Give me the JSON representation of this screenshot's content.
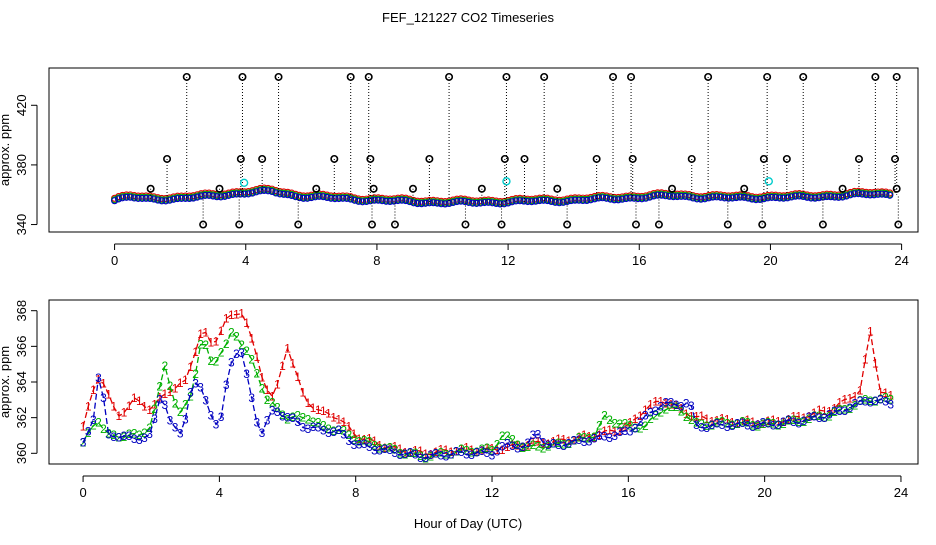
{
  "title": "FEF_121227  CO2 Timeseries",
  "xlabel": "Hour of Day (UTC)",
  "colors": {
    "series1": "#e00000",
    "series2": "#00b000",
    "series3": "#0000c0",
    "cyan": "#00cccc",
    "outlier": "#000000"
  },
  "chart_data": [
    {
      "type": "scatter",
      "ylabel": "approx. ppm",
      "xlim": [
        -2,
        24.5
      ],
      "ylim": [
        335,
        445
      ],
      "xticks": [
        0,
        4,
        8,
        12,
        16,
        20,
        24
      ],
      "yticks": [
        340,
        380,
        420
      ],
      "grid": false,
      "baseline": [
        [
          0,
          356
        ],
        [
          0.5,
          358
        ],
        [
          1,
          357
        ],
        [
          2,
          357
        ],
        [
          3,
          359
        ],
        [
          4,
          361
        ],
        [
          4.8,
          362
        ],
        [
          5.5,
          359
        ],
        [
          7,
          357
        ],
        [
          8,
          356
        ],
        [
          9,
          355
        ],
        [
          10,
          354.5
        ],
        [
          11,
          354.5
        ],
        [
          12,
          355
        ],
        [
          13,
          355.5
        ],
        [
          14,
          356
        ],
        [
          15,
          357
        ],
        [
          16,
          358
        ],
        [
          17,
          359
        ],
        [
          18,
          358
        ],
        [
          19,
          357.5
        ],
        [
          20,
          358
        ],
        [
          21,
          358
        ],
        [
          22,
          359
        ],
        [
          23,
          360
        ],
        [
          23.7,
          360
        ]
      ],
      "outliers_high": [
        2.2,
        3.9,
        5.0,
        7.2,
        7.75,
        10.2,
        11.95,
        13.1,
        15.2,
        15.75,
        18.1,
        19.9,
        21.0,
        23.2,
        23.85
      ],
      "high_value": 439,
      "outliers_mid": [
        1.6,
        3.85,
        4.5,
        6.7,
        7.8,
        9.6,
        11.9,
        12.5,
        14.7,
        15.8,
        17.6,
        19.8,
        20.5,
        22.7,
        23.8
      ],
      "mid_value": 384,
      "outliers_low": [
        2.7,
        3.8,
        5.6,
        7.85,
        8.55,
        10.7,
        11.8,
        13.8,
        15.9,
        16.6,
        18.7,
        19.75,
        21.6,
        23.9
      ],
      "low_value": 340,
      "outliers_small": [
        1.1,
        3.2,
        6.15,
        7.9,
        9.1,
        11.2,
        13.5,
        17.0,
        19.2,
        22.2,
        23.85
      ],
      "small_value": 364,
      "cyan_points": [
        [
          3.95,
          368
        ],
        [
          11.95,
          369
        ],
        [
          19.95,
          369
        ]
      ]
    },
    {
      "type": "line",
      "ylabel": "approx. ppm",
      "xlim": [
        -1,
        24.5
      ],
      "ylim": [
        359.4,
        368.6
      ],
      "xticks": [
        0,
        4,
        8,
        12,
        16,
        20,
        24
      ],
      "yticks": [
        360,
        362,
        364,
        366,
        368
      ],
      "grid": false,
      "series": [
        {
          "name": "1",
          "points": [
            [
              0,
              361.5
            ],
            [
              0.3,
              363.5
            ],
            [
              0.5,
              364.5
            ],
            [
              0.8,
              363
            ],
            [
              1,
              362
            ],
            [
              1.5,
              363
            ],
            [
              2,
              362.5
            ],
            [
              2.5,
              363.5
            ],
            [
              3,
              364
            ],
            [
              3.5,
              367
            ],
            [
              3.8,
              366
            ],
            [
              4.2,
              367.5
            ],
            [
              4.7,
              368
            ],
            [
              5,
              366
            ],
            [
              5.3,
              364
            ],
            [
              5.6,
              363
            ],
            [
              6,
              366
            ],
            [
              6.5,
              363
            ],
            [
              7,
              362.3
            ],
            [
              7.5,
              362
            ],
            [
              8,
              361
            ],
            [
              9,
              360.3
            ],
            [
              10,
              360
            ],
            [
              11,
              360.2
            ],
            [
              12,
              360.2
            ],
            [
              13,
              360.5
            ],
            [
              14,
              360.7
            ],
            [
              15,
              361
            ],
            [
              16,
              361.5
            ],
            [
              16.5,
              362.5
            ],
            [
              17,
              363
            ],
            [
              18,
              362
            ],
            [
              19,
              361.8
            ],
            [
              20,
              361.7
            ],
            [
              21,
              362
            ],
            [
              22,
              362.5
            ],
            [
              22.8,
              363.5
            ],
            [
              23.1,
              366.8
            ],
            [
              23.4,
              363.5
            ],
            [
              23.8,
              363
            ]
          ]
        },
        {
          "name": "2",
          "points": [
            [
              0,
              360.5
            ],
            [
              0.4,
              362
            ],
            [
              0.7,
              361
            ],
            [
              1,
              361
            ],
            [
              1.6,
              361
            ],
            [
              2,
              361.5
            ],
            [
              2.4,
              365
            ],
            [
              2.8,
              362
            ],
            [
              3.2,
              363.5
            ],
            [
              3.5,
              366.5
            ],
            [
              3.8,
              365
            ],
            [
              4.2,
              366
            ],
            [
              4.4,
              367
            ],
            [
              4.6,
              366.3
            ],
            [
              5,
              365
            ],
            [
              5.4,
              363
            ],
            [
              6,
              362
            ],
            [
              6.6,
              362
            ],
            [
              7,
              361.5
            ],
            [
              7.5,
              361.3
            ],
            [
              8,
              360.8
            ],
            [
              9,
              360.2
            ],
            [
              10,
              359.8
            ],
            [
              11,
              360.1
            ],
            [
              12,
              360.2
            ],
            [
              12.3,
              361
            ],
            [
              13,
              360.3
            ],
            [
              14,
              360.5
            ],
            [
              15,
              361
            ],
            [
              15.3,
              362
            ],
            [
              16,
              361.5
            ],
            [
              16.5,
              361.5
            ],
            [
              17,
              362.5
            ],
            [
              17.5,
              362.5
            ],
            [
              18,
              361.6
            ],
            [
              19,
              361.7
            ],
            [
              20,
              361.6
            ],
            [
              21,
              361.8
            ],
            [
              22,
              362.2
            ],
            [
              23,
              363
            ],
            [
              23.8,
              363
            ]
          ]
        },
        {
          "name": "3",
          "points": [
            [
              0,
              360.5
            ],
            [
              0.3,
              362
            ],
            [
              0.5,
              365
            ],
            [
              0.7,
              361
            ],
            [
              1,
              361
            ],
            [
              1.5,
              360.8
            ],
            [
              2,
              361
            ],
            [
              2.3,
              363.5
            ],
            [
              2.6,
              361.5
            ],
            [
              2.9,
              361
            ],
            [
              3.2,
              364
            ],
            [
              3.5,
              363.5
            ],
            [
              3.8,
              362
            ],
            [
              4,
              361.3
            ],
            [
              4.3,
              365
            ],
            [
              4.6,
              366
            ],
            [
              4.9,
              363.5
            ],
            [
              5.2,
              361
            ],
            [
              5.6,
              362.5
            ],
            [
              6,
              362
            ],
            [
              6.5,
              361.5
            ],
            [
              7,
              361.3
            ],
            [
              7.5,
              361.2
            ],
            [
              8,
              360.5
            ],
            [
              9,
              360.1
            ],
            [
              10,
              359.8
            ],
            [
              11,
              360
            ],
            [
              12,
              360
            ],
            [
              12.5,
              360.5
            ],
            [
              13,
              360.3
            ],
            [
              13.3,
              361.3
            ],
            [
              13.6,
              360.4
            ],
            [
              14,
              360.5
            ],
            [
              15,
              360.8
            ],
            [
              16,
              361.2
            ],
            [
              16.5,
              362
            ],
            [
              17,
              362.8
            ],
            [
              17.5,
              362.7
            ],
            [
              17.8,
              362.9
            ],
            [
              18,
              361.5
            ],
            [
              19,
              361.6
            ],
            [
              20,
              361.6
            ],
            [
              21,
              361.8
            ],
            [
              22,
              362.2
            ],
            [
              23,
              363
            ],
            [
              23.8,
              362.8
            ]
          ]
        }
      ]
    }
  ]
}
